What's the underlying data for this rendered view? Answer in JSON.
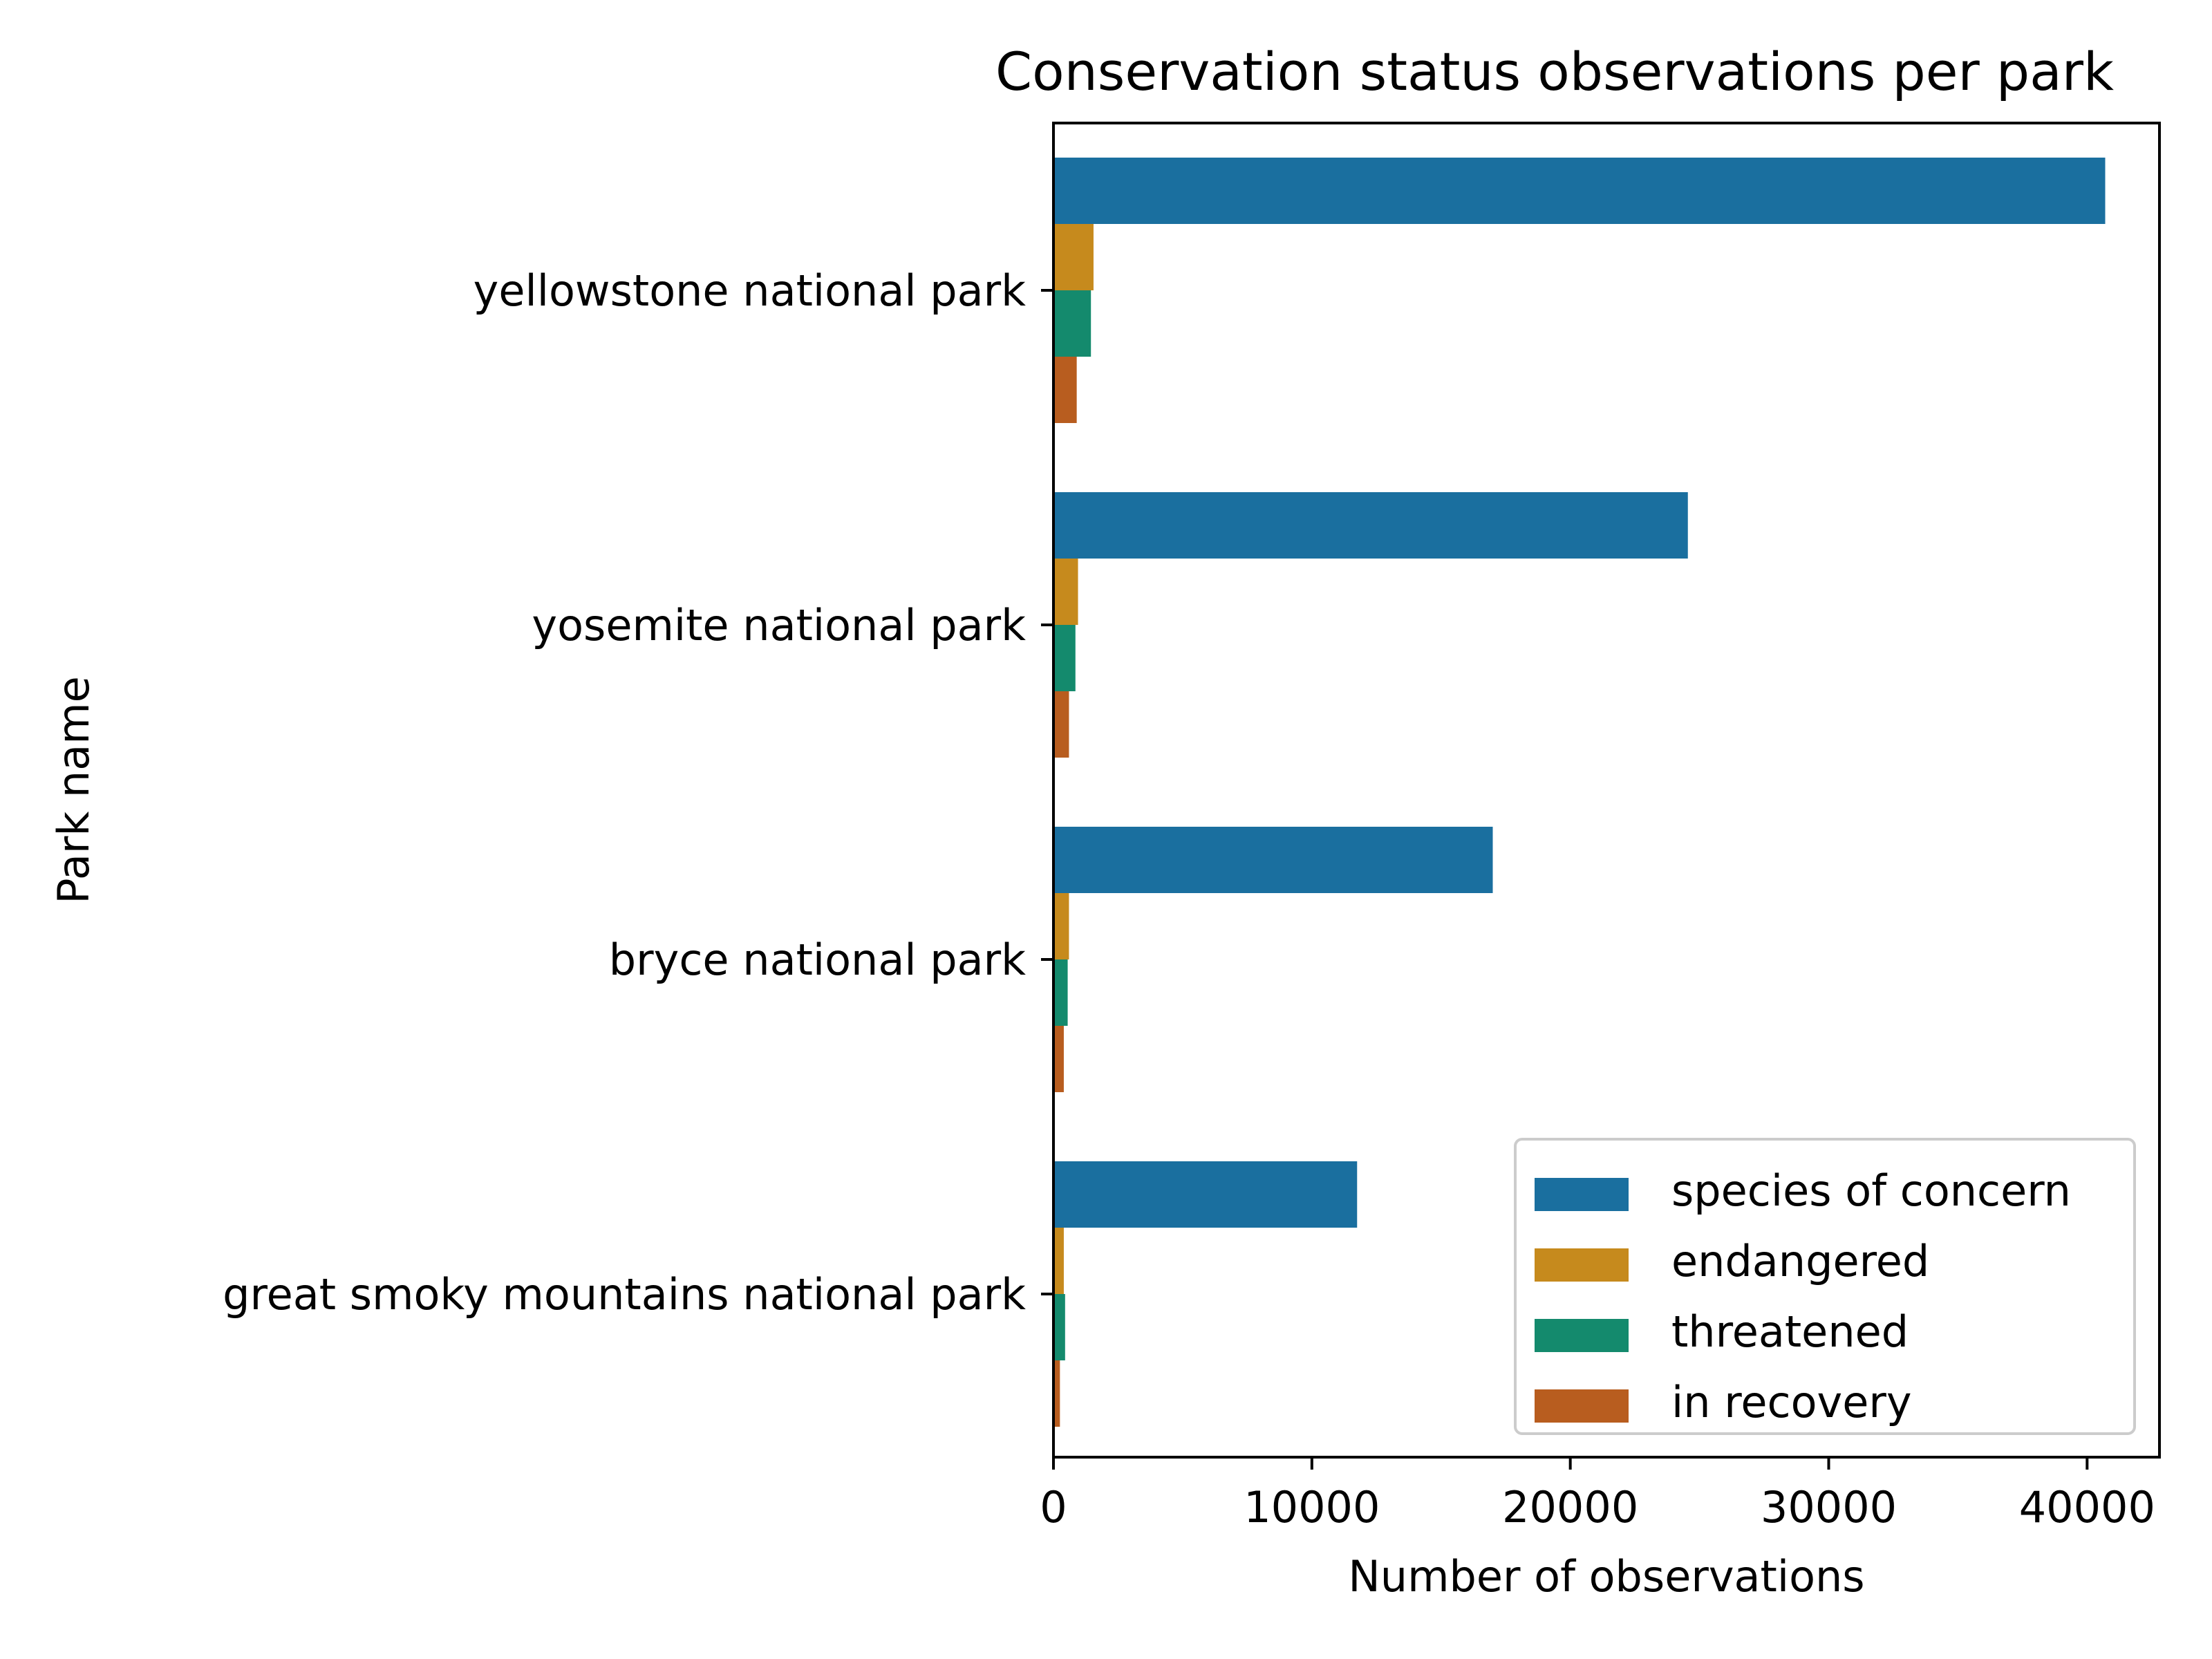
{
  "chart_data": {
    "type": "bar",
    "orientation": "horizontal",
    "title": "Conservation status observations per park",
    "xlabel": "Number of observations",
    "ylabel": "Park name",
    "categories": [
      "yellowstone national park",
      "yosemite national park",
      "bryce national park",
      "great smoky mountains national park"
    ],
    "series": [
      {
        "name": "species of concern",
        "color": "#1a6f9f",
        "values": [
          40700,
          24550,
          17000,
          11750
        ]
      },
      {
        "name": "endangered",
        "color": "#c68a1d",
        "values": [
          1550,
          950,
          600,
          400
        ]
      },
      {
        "name": "threatened",
        "color": "#148a6d",
        "values": [
          1450,
          850,
          550,
          450
        ]
      },
      {
        "name": "in recovery",
        "color": "#b85d1f",
        "values": [
          900,
          600,
          400,
          250
        ]
      }
    ],
    "xlim": [
      0,
      42800
    ],
    "xticks": [
      0,
      10000,
      20000,
      30000,
      40000
    ],
    "xtick_labels": [
      "0",
      "10000",
      "20000",
      "30000",
      "40000"
    ],
    "grid": false,
    "legend_position": "lower-right"
  }
}
